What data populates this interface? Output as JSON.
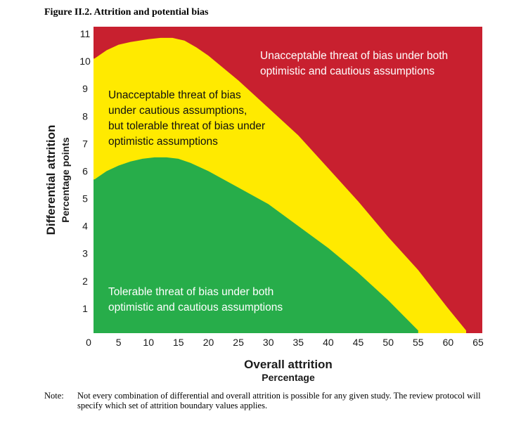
{
  "figure": {
    "title": "Figure II.2. Attrition and potential bias"
  },
  "chart_data": {
    "type": "area",
    "xlabel": "Overall attrition",
    "xlabel_sub": "Percentage",
    "ylabel": "Differential attrition",
    "ylabel_sub": "Percentage points",
    "xlim": [
      0,
      65
    ],
    "ylim": [
      0,
      11
    ],
    "x_ticks": [
      0,
      5,
      10,
      15,
      20,
      25,
      30,
      35,
      40,
      45,
      50,
      55,
      60,
      65
    ],
    "y_ticks": [
      1,
      2,
      3,
      4,
      5,
      6,
      7,
      8,
      9,
      10,
      11
    ],
    "colors": {
      "red": "#c8202f",
      "yellow": "#ffea00",
      "green": "#27ad4a"
    },
    "boundaries": [
      {
        "id": "cautious",
        "x": [
          1,
          3,
          5,
          7,
          9,
          11,
          13,
          15,
          17,
          20,
          25,
          30,
          35,
          40,
          45,
          50,
          55
        ],
        "y": [
          5.7,
          6.0,
          6.2,
          6.35,
          6.45,
          6.5,
          6.5,
          6.45,
          6.3,
          6.0,
          5.4,
          4.8,
          4.0,
          3.2,
          2.3,
          1.3,
          0.2
        ]
      },
      {
        "id": "optimistic",
        "x": [
          1,
          3,
          5,
          7,
          10,
          12,
          14,
          16,
          18,
          20,
          25,
          30,
          35,
          40,
          45,
          50,
          55,
          60,
          63
        ],
        "y": [
          10.1,
          10.4,
          10.6,
          10.7,
          10.8,
          10.85,
          10.85,
          10.75,
          10.5,
          10.2,
          9.3,
          8.3,
          7.3,
          6.1,
          4.9,
          3.6,
          2.4,
          1.0,
          0.2
        ]
      }
    ],
    "regions": [
      {
        "id": "tolerable",
        "color": "green",
        "lines": [
          "Tolerable threat of bias under both",
          "optimistic and cautious assumptions"
        ]
      },
      {
        "id": "cautious-unacceptable",
        "color": "yellow",
        "lines": [
          "Unacceptable threat of bias",
          "under cautious assumptions,",
          "but tolerable threat of bias under",
          "optimistic assumptions"
        ]
      },
      {
        "id": "both-unacceptable",
        "color": "red",
        "lines": [
          "Unacceptable threat of bias under both",
          "optimistic and cautious assumptions"
        ]
      }
    ]
  },
  "note": {
    "label": "Note:",
    "text": "Not every combination of differential and overall attrition is possible for any given study. The review protocol will specify which set of attrition boundary values applies."
  }
}
